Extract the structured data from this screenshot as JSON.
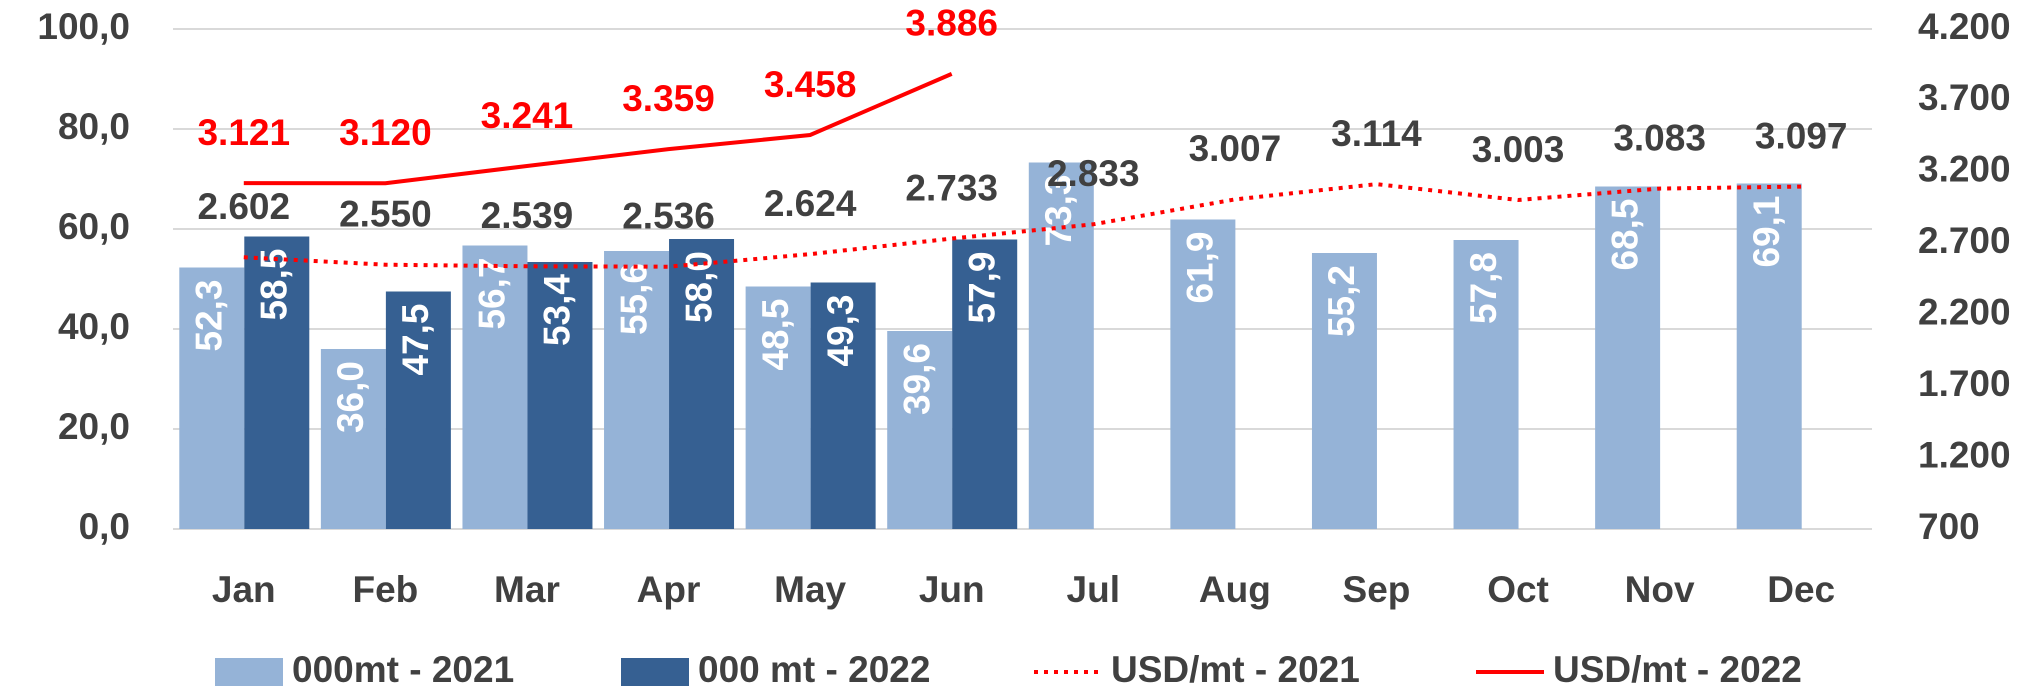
{
  "chart_data": {
    "type": "bar",
    "categories": [
      "Jan",
      "Feb",
      "Mar",
      "Apr",
      "May",
      "Jun",
      "Jul",
      "Aug",
      "Sep",
      "Oct",
      "Nov",
      "Dec"
    ],
    "ylim": [
      0,
      100
    ],
    "yticks": [
      {
        "value": 0,
        "label": "0,0"
      },
      {
        "value": 20,
        "label": "20,0"
      },
      {
        "value": 40,
        "label": "40,0"
      },
      {
        "value": 60,
        "label": "60,0"
      },
      {
        "value": 80,
        "label": "80,0"
      },
      {
        "value": 100,
        "label": "100,0"
      }
    ],
    "y2lim": [
      700,
      4200
    ],
    "y2ticks": [
      700,
      {
        "value": 1200,
        "label": "1.200"
      },
      {
        "value": 1700,
        "label": "1.700"
      },
      {
        "value": 2200,
        "label": "2.200"
      },
      {
        "value": 2700,
        "label": "2.700"
      },
      {
        "value": 3200,
        "label": "3.200"
      },
      {
        "value": 3700,
        "label": "3.700"
      },
      {
        "value": 4200,
        "label": "4.200"
      }
    ],
    "grid": true,
    "legend": "bottom",
    "series": [
      {
        "name": "000mt - 2021",
        "type": "bar",
        "color": "#95b3d7",
        "values": [
          52.3,
          36.0,
          56.7,
          55.6,
          48.5,
          39.6,
          73.3,
          61.9,
          55.2,
          57.8,
          68.5,
          69.1
        ],
        "value_labels": [
          "52,3",
          "36,0",
          "56,7",
          "55,6",
          "48,5",
          "39,6",
          "73,3",
          "61,9",
          "55,2",
          "57,8",
          "68,5",
          "69,1"
        ]
      },
      {
        "name": "000 mt - 2022",
        "type": "bar",
        "color": "#366092",
        "values": [
          58.5,
          47.5,
          53.4,
          58.0,
          49.3,
          57.9,
          null,
          null,
          null,
          null,
          null,
          null
        ],
        "value_labels": [
          "58,5",
          "47,5",
          "53,4",
          "58,0",
          "49,3",
          "57,9",
          null,
          null,
          null,
          null,
          null,
          null
        ]
      },
      {
        "name": "USD/mt - 2021",
        "type": "line",
        "axis": "y2",
        "color": "#ff0000",
        "dash": "dotted",
        "label_color": "#404040",
        "values": [
          2602,
          2550,
          2539,
          2536,
          2624,
          2733,
          2833,
          3007,
          3114,
          3003,
          3083,
          3097
        ],
        "value_labels": [
          "2.602",
          "2.550",
          "2.539",
          "2.536",
          "2.624",
          "2.733",
          "2.833",
          "3.007",
          "3.114",
          "3.003",
          "3.083",
          "3.097"
        ]
      },
      {
        "name": "USD/mt - 2022",
        "type": "line",
        "axis": "y2",
        "color": "#ff0000",
        "dash": "solid",
        "label_color": "#ff0000",
        "values": [
          3121,
          3120,
          3241,
          3359,
          3458,
          3886,
          null,
          null,
          null,
          null,
          null,
          null
        ],
        "value_labels": [
          "3.121",
          "3.120",
          "3.241",
          "3.359",
          "3.458",
          "3.886",
          null,
          null,
          null,
          null,
          null,
          null
        ]
      }
    ]
  }
}
